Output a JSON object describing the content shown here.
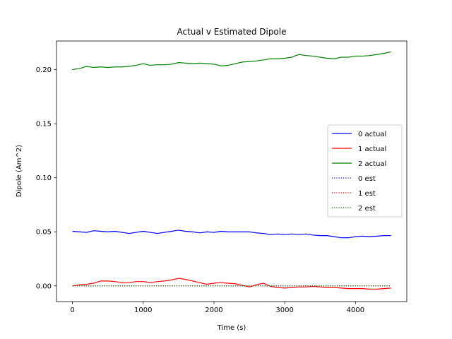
{
  "chart_data": {
    "type": "line",
    "title": "Actual v Estimated Dipole",
    "xlabel": "Time (s)",
    "ylabel": "Dipole (Am^2)",
    "xlim": [
      -225,
      4725
    ],
    "ylim": [
      -0.0145,
      0.2265
    ],
    "xticks": [
      0,
      1000,
      2000,
      3000,
      4000
    ],
    "xtick_labels": [
      "0",
      "1000",
      "2000",
      "3000",
      "4000"
    ],
    "yticks": [
      0.0,
      0.05,
      0.1,
      0.15,
      0.2
    ],
    "ytick_labels": [
      "0.00",
      "0.05",
      "0.10",
      "0.15",
      "0.20"
    ],
    "grid": false,
    "legend_position": "center-right",
    "series": [
      {
        "name": "0 actual",
        "color": "#0000ff",
        "style": "solid",
        "x": [
          0,
          100,
          200,
          300,
          400,
          500,
          600,
          700,
          800,
          900,
          1000,
          1100,
          1200,
          1300,
          1400,
          1500,
          1600,
          1700,
          1800,
          1900,
          2000,
          2100,
          2200,
          2300,
          2400,
          2500,
          2600,
          2700,
          2800,
          2900,
          3000,
          3100,
          3200,
          3300,
          3400,
          3500,
          3600,
          3700,
          3800,
          3900,
          4000,
          4100,
          4200,
          4300,
          4400,
          4500
        ],
        "y": [
          0.0505,
          0.05,
          0.0495,
          0.051,
          0.0505,
          0.05,
          0.0505,
          0.0495,
          0.0485,
          0.0495,
          0.0505,
          0.0495,
          0.0485,
          0.0495,
          0.0505,
          0.0515,
          0.0505,
          0.05,
          0.049,
          0.05,
          0.0495,
          0.0505,
          0.05,
          0.05,
          0.05,
          0.05,
          0.049,
          0.0485,
          0.0475,
          0.048,
          0.0475,
          0.048,
          0.0475,
          0.048,
          0.047,
          0.0465,
          0.0465,
          0.0455,
          0.0445,
          0.0445,
          0.0455,
          0.046,
          0.0455,
          0.046,
          0.0465,
          0.0465
        ]
      },
      {
        "name": "1 actual",
        "color": "#ff0000",
        "style": "solid",
        "x": [
          0,
          100,
          200,
          300,
          400,
          500,
          600,
          700,
          800,
          900,
          1000,
          1100,
          1200,
          1300,
          1400,
          1500,
          1600,
          1700,
          1800,
          1900,
          2000,
          2100,
          2200,
          2300,
          2400,
          2500,
          2600,
          2700,
          2800,
          2900,
          3000,
          3100,
          3200,
          3300,
          3400,
          3500,
          3600,
          3700,
          3800,
          3900,
          4000,
          4100,
          4200,
          4300,
          4400,
          4500
        ],
        "y": [
          0.0,
          0.001,
          0.0015,
          0.0025,
          0.0045,
          0.0045,
          0.004,
          0.003,
          0.003,
          0.004,
          0.004,
          0.003,
          0.004,
          0.0045,
          0.0055,
          0.007,
          0.006,
          0.0045,
          0.003,
          0.0015,
          0.0025,
          0.003,
          0.0025,
          0.002,
          0.0005,
          -0.001,
          0.001,
          0.0025,
          -0.0005,
          -0.0015,
          -0.002,
          -0.0015,
          -0.001,
          -0.001,
          -0.0005,
          -0.001,
          -0.0015,
          -0.0015,
          -0.002,
          -0.0025,
          -0.0025,
          -0.0025,
          -0.003,
          -0.003,
          -0.0025,
          -0.002
        ]
      },
      {
        "name": "2 actual",
        "color": "#008000",
        "style": "solid",
        "x": [
          0,
          100,
          200,
          300,
          400,
          500,
          600,
          700,
          800,
          900,
          1000,
          1100,
          1200,
          1300,
          1400,
          1500,
          1600,
          1700,
          1800,
          1900,
          2000,
          2100,
          2200,
          2300,
          2400,
          2500,
          2600,
          2700,
          2800,
          2900,
          3000,
          3100,
          3200,
          3300,
          3400,
          3500,
          3600,
          3700,
          3800,
          3900,
          4000,
          4100,
          4200,
          4300,
          4400,
          4500
        ],
        "y": [
          0.2,
          0.201,
          0.203,
          0.202,
          0.2025,
          0.202,
          0.2025,
          0.2025,
          0.203,
          0.204,
          0.2055,
          0.204,
          0.2045,
          0.2045,
          0.205,
          0.2065,
          0.206,
          0.2055,
          0.206,
          0.2055,
          0.205,
          0.2035,
          0.204,
          0.2055,
          0.207,
          0.2075,
          0.208,
          0.209,
          0.21,
          0.21,
          0.2105,
          0.2115,
          0.214,
          0.213,
          0.2125,
          0.2115,
          0.2105,
          0.21,
          0.2115,
          0.2115,
          0.2125,
          0.2125,
          0.213,
          0.214,
          0.215,
          0.2165
        ]
      },
      {
        "name": "0 est",
        "color": "#0000ff",
        "style": "dotted",
        "x": [
          0,
          4500
        ],
        "y": [
          0,
          0
        ]
      },
      {
        "name": "1 est",
        "color": "#ff0000",
        "style": "dotted",
        "x": [
          0,
          4500
        ],
        "y": [
          0,
          0
        ]
      },
      {
        "name": "2 est",
        "color": "#008000",
        "style": "dotted",
        "x": [
          0,
          4500
        ],
        "y": [
          0,
          0
        ]
      }
    ]
  }
}
